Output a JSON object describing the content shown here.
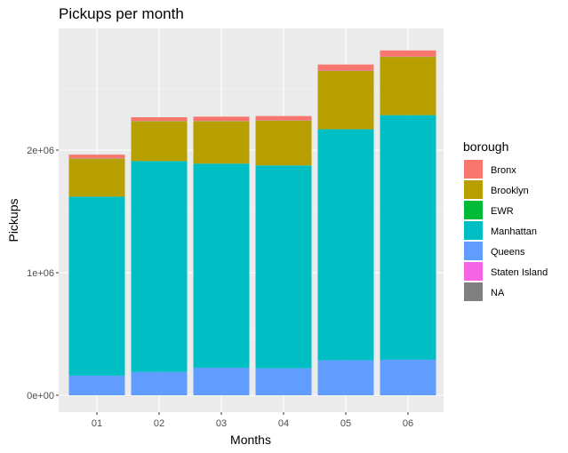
{
  "chart_data": {
    "type": "bar",
    "stacked": true,
    "title": "Pickups per month",
    "xlabel": "Months",
    "ylabel": "Pickups",
    "categories": [
      "01",
      "02",
      "03",
      "04",
      "05",
      "06"
    ],
    "ylim": [
      0,
      2900000
    ],
    "yticks": [
      0,
      1000000,
      2000000
    ],
    "ytick_labels": [
      "0e+00",
      "1e+06",
      "2e+06"
    ],
    "grid": true,
    "legend_position": "right",
    "legend_title": "borough",
    "legend": [
      {
        "name": "Bronx",
        "color": "#F8766D"
      },
      {
        "name": "Brooklyn",
        "color": "#B79F00"
      },
      {
        "name": "EWR",
        "color": "#00BA38"
      },
      {
        "name": "Manhattan",
        "color": "#00BFC4"
      },
      {
        "name": "Queens",
        "color": "#619CFF"
      },
      {
        "name": "Staten Island",
        "color": "#F564E3"
      },
      {
        "name": "NA",
        "color": "#808080"
      }
    ],
    "series": [
      {
        "name": "Queens",
        "color": "#619CFF",
        "values": [
          160000,
          190000,
          225000,
          220000,
          285000,
          290000
        ]
      },
      {
        "name": "Manhattan",
        "color": "#00BFC4",
        "values": [
          1460000,
          1720000,
          1665000,
          1655000,
          1885000,
          1995000
        ]
      },
      {
        "name": "Brooklyn",
        "color": "#B79F00",
        "values": [
          310000,
          325000,
          345000,
          365000,
          475000,
          475000
        ]
      },
      {
        "name": "EWR",
        "color": "#00BA38",
        "values": [
          1000,
          1000,
          1000,
          1000,
          1000,
          1000
        ]
      },
      {
        "name": "Staten Island",
        "color": "#F564E3",
        "values": [
          1000,
          1000,
          1000,
          1000,
          1000,
          1000
        ]
      },
      {
        "name": "NA",
        "color": "#808080",
        "values": [
          1000,
          1000,
          1000,
          1000,
          1000,
          1000
        ]
      },
      {
        "name": "Bronx",
        "color": "#F8766D",
        "values": [
          30000,
          30000,
          35000,
          35000,
          50000,
          50000
        ]
      }
    ]
  }
}
